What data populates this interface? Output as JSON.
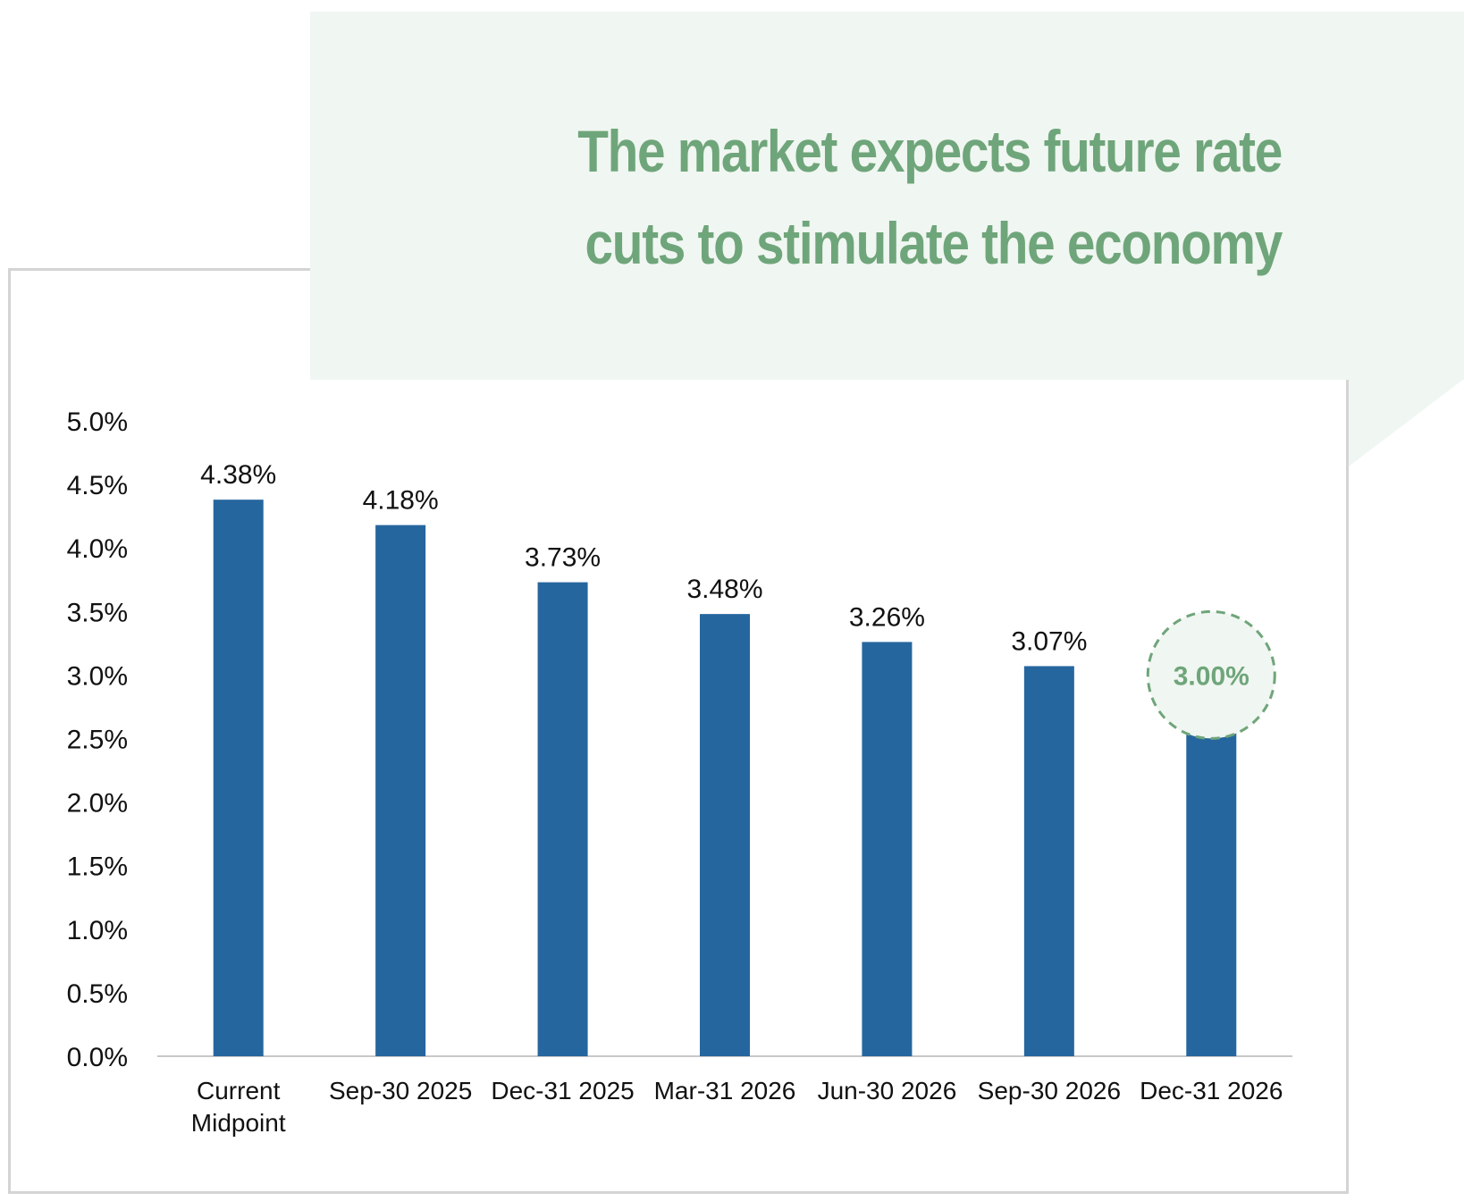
{
  "callout": {
    "line1": "The market expects future rate",
    "line2": "cuts to stimulate the economy"
  },
  "colors": {
    "bar": "#26669e",
    "callout_bg": "#f0f6f1",
    "callout_text": "#6fa57a",
    "axis": "#c8c8c8",
    "text": "#111111",
    "frame": "#d4d4d4"
  },
  "chart_data": {
    "type": "bar",
    "categories": [
      "Current\nMidpoint",
      "Sep-30 2025",
      "Dec-31 2025",
      "Mar-31 2026",
      "Jun-30 2026",
      "Sep-30 2026",
      "Dec-31 2026"
    ],
    "values": [
      4.38,
      4.18,
      3.73,
      3.48,
      3.26,
      3.07,
      3.0
    ],
    "data_labels": [
      "4.38%",
      "4.18%",
      "3.73%",
      "3.48%",
      "3.26%",
      "3.07%",
      "3.00%"
    ],
    "highlight_index": 6,
    "highlight_style": "dashed-circle",
    "ylim": [
      0,
      5
    ],
    "yticks": [
      "0.0%",
      "0.5%",
      "1.0%",
      "1.5%",
      "2.0%",
      "2.5%",
      "3.0%",
      "3.5%",
      "4.0%",
      "4.5%",
      "5.0%"
    ],
    "ytick_values": [
      0,
      0.5,
      1.0,
      1.5,
      2.0,
      2.5,
      3.0,
      3.5,
      4.0,
      4.5,
      5.0
    ],
    "grid": false,
    "legend": "none"
  }
}
